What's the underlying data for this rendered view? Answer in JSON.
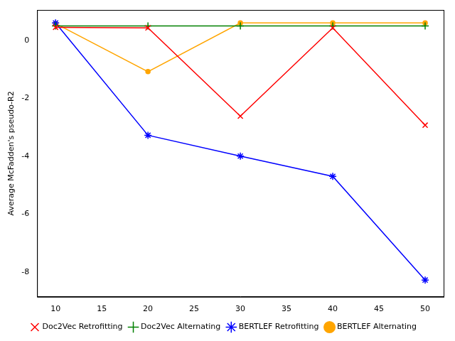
{
  "chart_data": {
    "type": "line",
    "y_label": "Average McFadden's pseudo-R2",
    "x": [
      10,
      20,
      30,
      40,
      50
    ],
    "series": [
      {
        "name": "Doc2Vec Retrofitting",
        "color": "#ff0000",
        "marker": "x",
        "values": [
          0.45,
          0.43,
          -2.62,
          0.43,
          -2.93
        ]
      },
      {
        "name": "Doc2Vec Alternating",
        "color": "#008000",
        "marker": "+",
        "values": [
          0.5,
          0.5,
          0.5,
          0.5,
          0.5
        ]
      },
      {
        "name": "BERTLEF Retrofitting",
        "color": "#0000ff",
        "marker": "*",
        "values": [
          0.6,
          -3.28,
          -4.0,
          -4.7,
          -8.28
        ]
      },
      {
        "name": "BERTLEF Alternating",
        "color": "#ffa500",
        "marker": "o",
        "values": [
          0.58,
          -1.08,
          0.6,
          0.6,
          0.6
        ]
      }
    ],
    "xlim": [
      8,
      52
    ],
    "xticks": [
      10,
      15,
      20,
      25,
      30,
      35,
      40,
      45,
      50
    ],
    "ylim": [
      -8.86,
      1.05
    ],
    "yticks": [
      -8,
      -6,
      -4,
      -2,
      0
    ],
    "grid": false,
    "legend": "bottom"
  }
}
